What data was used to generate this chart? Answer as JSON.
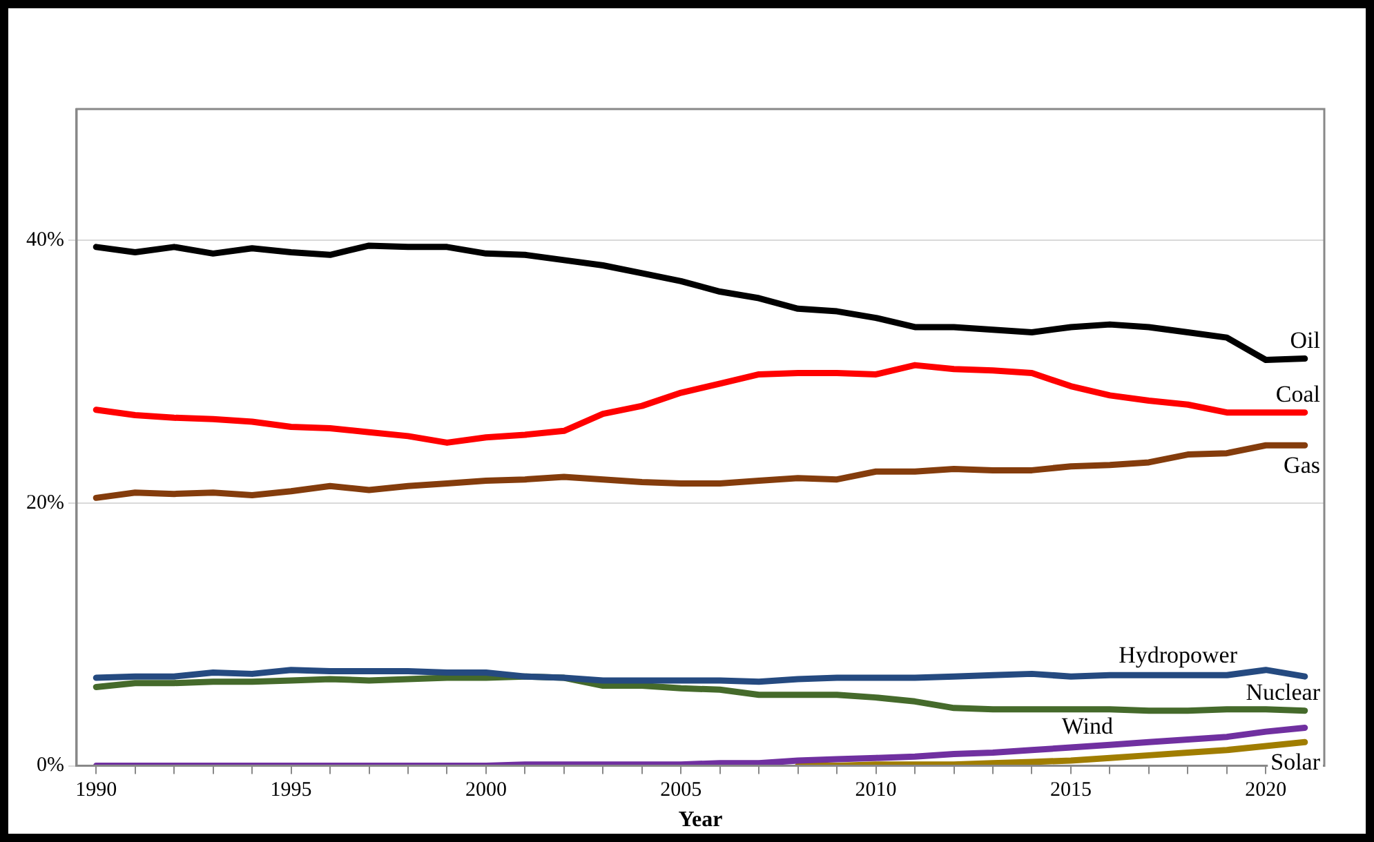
{
  "chart_data": {
    "type": "line",
    "xlabel": "Year",
    "x": [
      1990,
      1991,
      1992,
      1993,
      1994,
      1995,
      1996,
      1997,
      1998,
      1999,
      2000,
      2001,
      2002,
      2003,
      2004,
      2005,
      2006,
      2007,
      2008,
      2009,
      2010,
      2011,
      2012,
      2013,
      2014,
      2015,
      2016,
      2017,
      2018,
      2019,
      2020,
      2021
    ],
    "series": [
      {
        "name": "Oil",
        "color": "#000000",
        "values": [
          39.5,
          39.1,
          39.5,
          39.0,
          39.4,
          39.1,
          38.9,
          39.6,
          39.5,
          39.5,
          39.0,
          38.9,
          38.5,
          38.1,
          37.5,
          36.9,
          36.1,
          35.6,
          34.8,
          34.6,
          34.1,
          33.4,
          33.4,
          33.2,
          33.0,
          33.4,
          33.6,
          33.4,
          33.0,
          32.6,
          30.9,
          31.0
        ]
      },
      {
        "name": "Coal",
        "color": "#ff0000",
        "values": [
          27.1,
          26.7,
          26.5,
          26.4,
          26.2,
          25.8,
          25.7,
          25.4,
          25.1,
          24.6,
          25.0,
          25.2,
          25.5,
          26.8,
          27.4,
          28.4,
          29.1,
          29.8,
          29.9,
          29.9,
          29.8,
          30.5,
          30.2,
          30.1,
          29.9,
          28.9,
          28.2,
          27.8,
          27.5,
          26.9,
          26.9,
          26.9
        ]
      },
      {
        "name": "Gas",
        "color": "#843c0c",
        "values": [
          20.4,
          20.8,
          20.7,
          20.8,
          20.6,
          20.9,
          21.3,
          21.0,
          21.3,
          21.5,
          21.7,
          21.8,
          22.0,
          21.8,
          21.6,
          21.5,
          21.5,
          21.7,
          21.9,
          21.8,
          22.4,
          22.4,
          22.6,
          22.5,
          22.5,
          22.8,
          22.9,
          23.1,
          23.7,
          23.8,
          24.4,
          24.4
        ]
      },
      {
        "name": "Hydropower",
        "color": "#254a80",
        "values": [
          6.7,
          6.8,
          6.8,
          7.1,
          7.0,
          7.3,
          7.2,
          7.2,
          7.2,
          7.1,
          7.1,
          6.8,
          6.7,
          6.5,
          6.5,
          6.5,
          6.5,
          6.4,
          6.6,
          6.7,
          6.7,
          6.7,
          6.8,
          6.9,
          7.0,
          6.8,
          6.9,
          6.9,
          6.9,
          6.9,
          7.3,
          6.8
        ]
      },
      {
        "name": "Nuclear",
        "color": "#456a2b",
        "values": [
          6.0,
          6.3,
          6.3,
          6.4,
          6.4,
          6.5,
          6.6,
          6.5,
          6.6,
          6.7,
          6.7,
          6.8,
          6.7,
          6.1,
          6.1,
          5.9,
          5.8,
          5.4,
          5.4,
          5.4,
          5.2,
          4.9,
          4.4,
          4.3,
          4.3,
          4.3,
          4.3,
          4.2,
          4.2,
          4.3,
          4.3,
          4.2
        ]
      },
      {
        "name": "Wind",
        "color": "#7030a0",
        "values": [
          0,
          0,
          0,
          0,
          0,
          0,
          0,
          0,
          0,
          0,
          0,
          0.1,
          0.1,
          0.1,
          0.1,
          0.1,
          0.2,
          0.2,
          0.4,
          0.5,
          0.6,
          0.7,
          0.9,
          1.0,
          1.2,
          1.4,
          1.6,
          1.8,
          2.0,
          2.2,
          2.6,
          2.9
        ]
      },
      {
        "name": "Solar",
        "color": "#a07d00",
        "values": [
          null,
          null,
          null,
          null,
          null,
          null,
          null,
          null,
          null,
          null,
          null,
          null,
          null,
          null,
          null,
          null,
          null,
          null,
          0,
          0,
          0.1,
          0.1,
          0.1,
          0.2,
          0.3,
          0.4,
          0.6,
          0.8,
          1.0,
          1.2,
          1.5,
          1.8
        ]
      }
    ],
    "xlim": [
      1989.5,
      2021.5
    ],
    "xticks": [
      1990,
      {
        "value": 1991,
        "label": null
      },
      {
        "value": 1992,
        "label": null
      },
      {
        "value": 1993,
        "label": null
      },
      {
        "value": 1994,
        "label": null
      },
      1995,
      {
        "value": 1996,
        "label": null
      },
      {
        "value": 1997,
        "label": null
      },
      {
        "value": 1998,
        "label": null
      },
      {
        "value": 1999,
        "label": null
      },
      2000,
      {
        "value": 2001,
        "label": null
      },
      {
        "value": 2002,
        "label": null
      },
      {
        "value": 2003,
        "label": null
      },
      {
        "value": 2004,
        "label": null
      },
      2005,
      {
        "value": 2006,
        "label": null
      },
      {
        "value": 2007,
        "label": null
      },
      {
        "value": 2008,
        "label": null
      },
      {
        "value": 2009,
        "label": null
      },
      2010,
      {
        "value": 2011,
        "label": null
      },
      {
        "value": 2012,
        "label": null
      },
      {
        "value": 2013,
        "label": null
      },
      {
        "value": 2014,
        "label": null
      },
      2015,
      {
        "value": 2016,
        "label": null
      },
      {
        "value": 2017,
        "label": null
      },
      {
        "value": 2018,
        "label": null
      },
      {
        "value": 2019,
        "label": null
      },
      2020,
      {
        "value": 2021,
        "label": null
      }
    ],
    "ylim": [
      0,
      50
    ],
    "yticks": [
      {
        "value": 0,
        "label": "0%"
      },
      {
        "value": 20,
        "label": "20%"
      },
      {
        "value": 40,
        "label": "40%"
      }
    ],
    "grid": "y",
    "legend": false,
    "marker": "none",
    "line_style": "solid"
  }
}
